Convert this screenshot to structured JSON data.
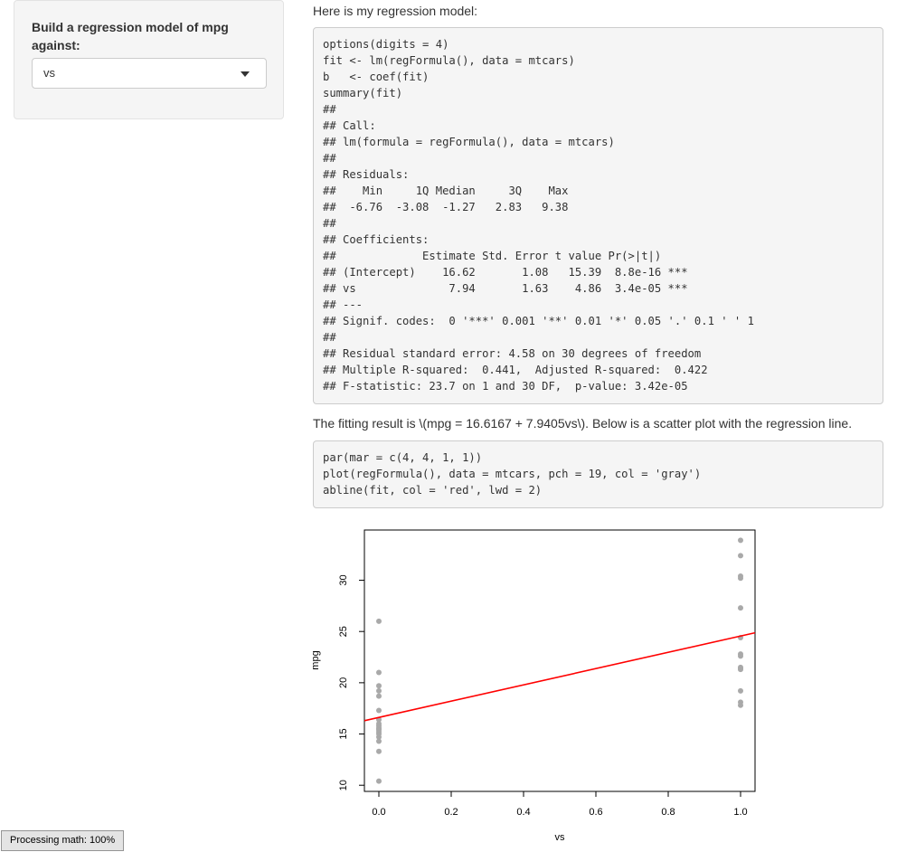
{
  "sidebar": {
    "label": "Build a regression model of mpg against:",
    "select_value": "vs"
  },
  "main": {
    "intro": "Here is my regression model:",
    "code_block_1": "options(digits = 4)\nfit <- lm(regFormula(), data = mtcars)\nb   <- coef(fit)\nsummary(fit)\n##\n## Call:\n## lm(formula = regFormula(), data = mtcars)\n##\n## Residuals:\n##    Min     1Q Median     3Q    Max\n##  -6.76  -3.08  -1.27   2.83   9.38\n##\n## Coefficients:\n##             Estimate Std. Error t value Pr(>|t|)\n## (Intercept)    16.62       1.08   15.39  8.8e-16 ***\n## vs              7.94       1.63    4.86  3.4e-05 ***\n## ---\n## Signif. codes:  0 '***' 0.001 '**' 0.01 '*' 0.05 '.' 0.1 ' ' 1\n##\n## Residual standard error: 4.58 on 30 degrees of freedom\n## Multiple R-squared:  0.441,  Adjusted R-squared:  0.422\n## F-statistic: 23.7 on 1 and 30 DF,  p-value: 3.42e-05",
    "fit_text": "The fitting result is \\(mpg = 16.6167 + 7.9405vs\\). Below is a scatter plot with the regression line.",
    "code_block_2": "par(mar = c(4, 4, 1, 1))\nplot(regFormula(), data = mtcars, pch = 19, col = 'gray')\nabline(fit, col = 'red', lwd = 2)"
  },
  "status_text": "Processing math: 100%",
  "colors": {
    "point": "#a9a9a9",
    "line": "#ff0000"
  },
  "chart_data": {
    "type": "scatter",
    "xlabel": "vs",
    "ylabel": "mpg",
    "xlim": [
      -0.04,
      1.04
    ],
    "ylim": [
      9.4,
      34.9
    ],
    "x_ticks": [
      0.0,
      0.2,
      0.4,
      0.6,
      0.8,
      1.0
    ],
    "x_tick_labels": [
      "0.0",
      "0.2",
      "0.4",
      "0.6",
      "0.8",
      "1.0"
    ],
    "y_ticks": [
      10,
      15,
      20,
      25,
      30
    ],
    "y_tick_labels": [
      "10",
      "15",
      "20",
      "25",
      "30"
    ],
    "points": {
      "x": [
        0,
        0,
        0,
        0,
        0,
        0,
        0,
        0,
        0,
        0,
        0,
        0,
        0,
        0,
        0,
        0,
        0,
        0,
        1,
        1,
        1,
        1,
        1,
        1,
        1,
        1,
        1,
        1,
        1,
        1,
        1,
        1
      ],
      "y": [
        10.4,
        13.3,
        14.3,
        14.7,
        15.0,
        15.2,
        15.5,
        15.8,
        16.4,
        17.3,
        18.7,
        19.2,
        19.7,
        21.0,
        26.0,
        16.0,
        15.6,
        15.4,
        17.8,
        18.1,
        19.2,
        21.4,
        21.5,
        22.8,
        24.4,
        27.3,
        30.4,
        32.4,
        33.9,
        21.3,
        22.6,
        30.2
      ]
    },
    "regression": {
      "intercept": 16.6167,
      "slope": 7.9405
    }
  }
}
